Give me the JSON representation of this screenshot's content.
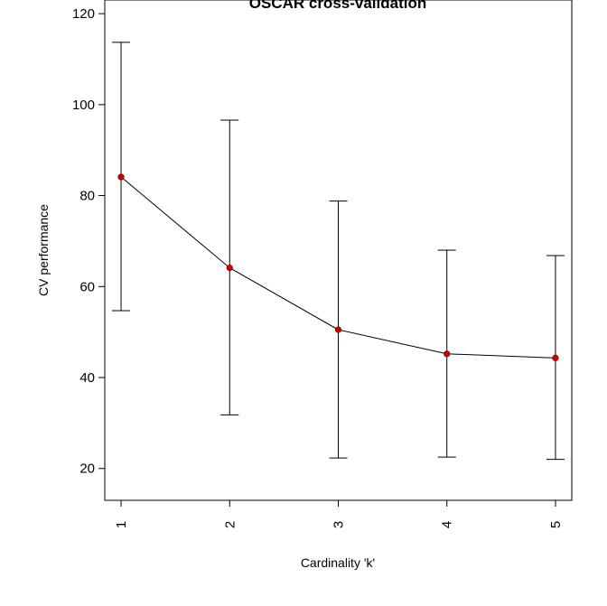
{
  "chart_data": {
    "type": "line",
    "title": "OSCAR cross-validation",
    "xlabel": "Cardinality 'k'",
    "ylabel": "CV performance",
    "x": [
      1,
      2,
      3,
      4,
      5
    ],
    "x_tick_labels": [
      "1",
      "2",
      "3",
      "4",
      "5"
    ],
    "y_ticks": [
      20,
      40,
      60,
      80,
      100,
      120
    ],
    "y_tick_labels": [
      "20",
      "40",
      "60",
      "80",
      "100",
      "120"
    ],
    "ylim": [
      13,
      123
    ],
    "xlim": [
      0.85,
      5.15
    ],
    "grid": false,
    "series": [
      {
        "values": [
          84.1,
          64.1,
          50.5,
          45.2,
          44.3
        ],
        "upper": [
          113.7,
          96.6,
          78.8,
          68.0,
          66.8
        ],
        "lower": [
          54.7,
          31.8,
          22.3,
          22.5,
          22.0
        ],
        "line_color": "#000000",
        "point_color": "#cc0000"
      }
    ]
  }
}
